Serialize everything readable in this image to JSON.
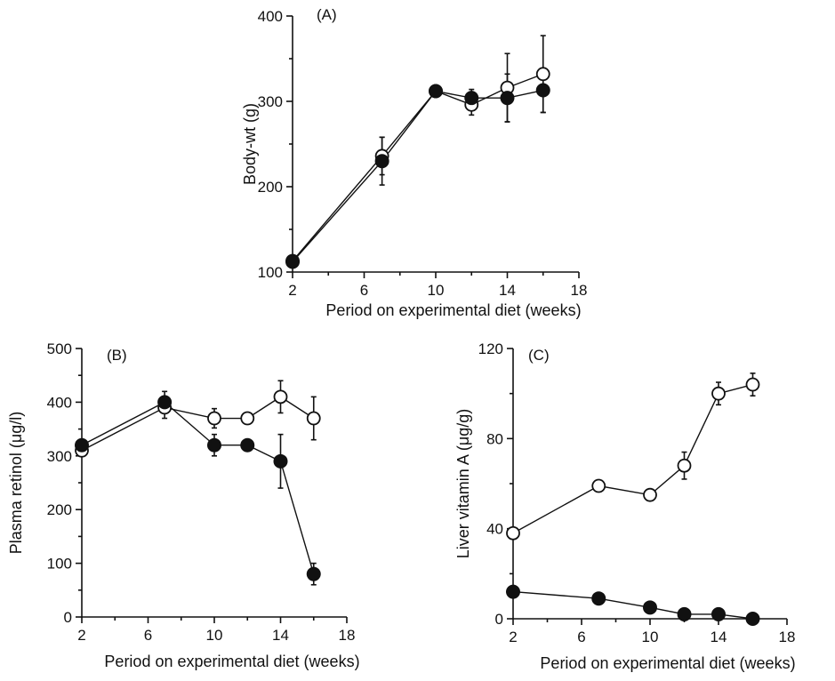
{
  "chart_data": [
    {
      "id": "A",
      "type": "line",
      "panel_label": "(A)",
      "xlabel": "Period on experimental diet (weeks)",
      "ylabel": "Body-wt (g)",
      "xlim": [
        2,
        18
      ],
      "ylim": [
        100,
        400
      ],
      "xticks": [
        2,
        6,
        10,
        14,
        18
      ],
      "yticks": [
        100,
        200,
        300,
        400
      ],
      "grid": false,
      "series": [
        {
          "marker": "open-circle",
          "points": [
            {
              "x": 2,
              "y": 113,
              "err": 5
            },
            {
              "x": 7,
              "y": 236,
              "err": 22
            },
            {
              "x": 10,
              "y": 312,
              "err": 4
            },
            {
              "x": 12,
              "y": 296,
              "err": 12
            },
            {
              "x": 14,
              "y": 316,
              "err": 40
            },
            {
              "x": 16,
              "y": 332,
              "err": 45
            }
          ]
        },
        {
          "marker": "filled-circle",
          "points": [
            {
              "x": 2,
              "y": 112,
              "err": 5
            },
            {
              "x": 7,
              "y": 230,
              "err": 28
            },
            {
              "x": 10,
              "y": 312,
              "err": 4
            },
            {
              "x": 12,
              "y": 304,
              "err": 10
            },
            {
              "x": 14,
              "y": 304,
              "err": 28
            },
            {
              "x": 16,
              "y": 313,
              "err": 26
            }
          ]
        }
      ]
    },
    {
      "id": "B",
      "type": "line",
      "panel_label": "(B)",
      "xlabel": "Period on experimental diet (weeks)",
      "ylabel": "Plasma retinol (μg/l)",
      "xlim": [
        2,
        18
      ],
      "ylim": [
        0,
        500
      ],
      "xticks": [
        2,
        6,
        10,
        14,
        18
      ],
      "yticks": [
        0,
        100,
        200,
        300,
        400,
        500
      ],
      "grid": false,
      "series": [
        {
          "marker": "open-circle",
          "points": [
            {
              "x": 2,
              "y": 310,
              "err": 10
            },
            {
              "x": 7,
              "y": 390,
              "err": 20
            },
            {
              "x": 10,
              "y": 370,
              "err": 18
            },
            {
              "x": 12,
              "y": 370,
              "err": 0
            },
            {
              "x": 14,
              "y": 410,
              "err": 30
            },
            {
              "x": 16,
              "y": 370,
              "err": 40
            }
          ]
        },
        {
          "marker": "filled-circle",
          "points": [
            {
              "x": 2,
              "y": 320,
              "err": 10
            },
            {
              "x": 7,
              "y": 400,
              "err": 20
            },
            {
              "x": 10,
              "y": 320,
              "err": 20
            },
            {
              "x": 12,
              "y": 320,
              "err": 0
            },
            {
              "x": 14,
              "y": 290,
              "err": 50
            },
            {
              "x": 16,
              "y": 80,
              "err": 20
            }
          ]
        }
      ]
    },
    {
      "id": "C",
      "type": "line",
      "panel_label": "(C)",
      "xlabel": "Period on experimental diet (weeks)",
      "ylabel": "Liver vitamin A (μg/g)",
      "xlim": [
        2,
        18
      ],
      "ylim": [
        0,
        120
      ],
      "xticks": [
        2,
        6,
        10,
        14,
        18
      ],
      "yticks": [
        0,
        40,
        80,
        120
      ],
      "grid": false,
      "series": [
        {
          "marker": "open-circle",
          "points": [
            {
              "x": 2,
              "y": 38,
              "err": 2
            },
            {
              "x": 7,
              "y": 59,
              "err": 0
            },
            {
              "x": 10,
              "y": 55,
              "err": 0
            },
            {
              "x": 12,
              "y": 68,
              "err": 6
            },
            {
              "x": 14,
              "y": 100,
              "err": 5
            },
            {
              "x": 16,
              "y": 104,
              "err": 5
            }
          ]
        },
        {
          "marker": "filled-circle",
          "points": [
            {
              "x": 2,
              "y": 12,
              "err": 0
            },
            {
              "x": 7,
              "y": 9,
              "err": 0
            },
            {
              "x": 10,
              "y": 5,
              "err": 0
            },
            {
              "x": 12,
              "y": 2,
              "err": 0
            },
            {
              "x": 14,
              "y": 2,
              "err": 0
            },
            {
              "x": 16,
              "y": 0,
              "err": 0
            }
          ]
        }
      ]
    }
  ]
}
